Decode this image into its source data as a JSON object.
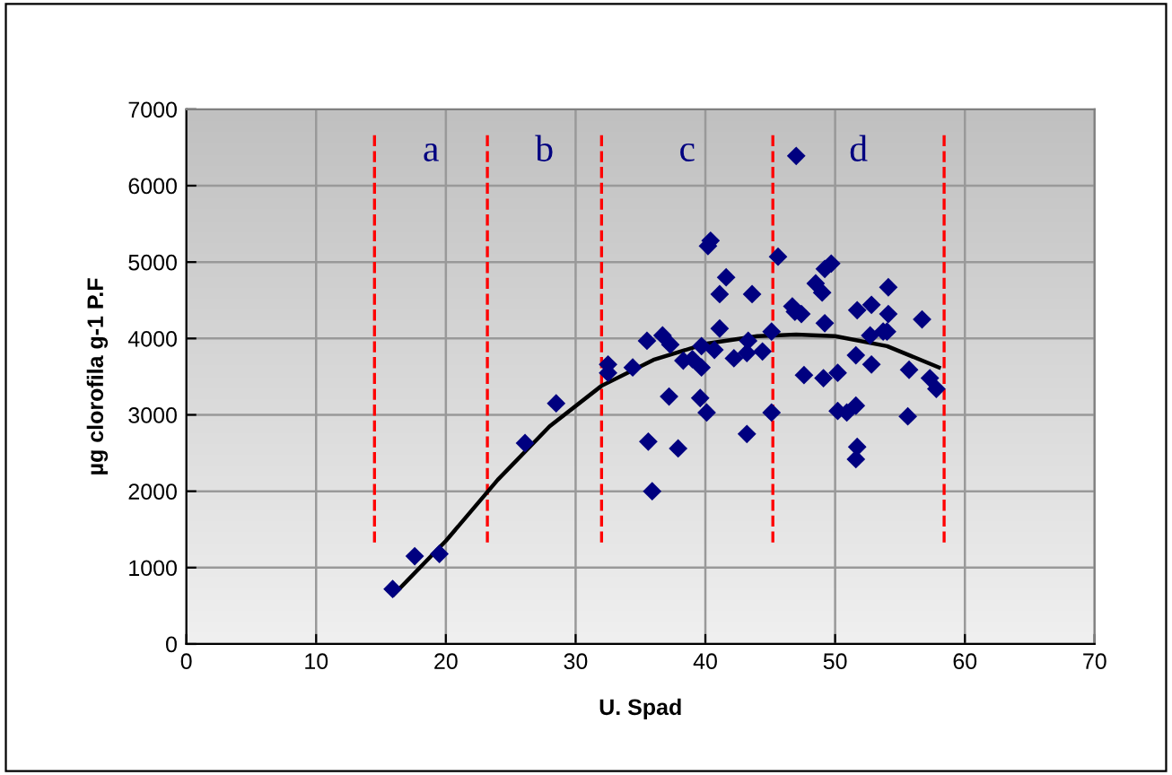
{
  "chart_data": {
    "type": "scatter",
    "xlabel": "U. Spad",
    "ylabel": "µg clorofila g-1 P.F",
    "xlim": [
      0,
      70
    ],
    "xticks": [
      0,
      10,
      20,
      30,
      40,
      50,
      60,
      70
    ],
    "ylim": [
      0,
      7000
    ],
    "yticks": [
      0,
      1000,
      2000,
      3000,
      4000,
      5000,
      6000,
      7000
    ],
    "grid": true,
    "marker": "diamond",
    "series": [
      {
        "color": "#000080",
        "x": [
          15.9,
          17.6,
          19.5,
          26.1,
          28.5,
          32.5,
          32.5,
          34.4,
          35.5,
          35.6,
          35.9,
          36.7,
          37.3,
          37.2,
          37.9,
          38.3,
          39.0,
          39.6,
          39.7,
          39.7,
          40.1,
          40.2,
          40.4,
          40.7,
          41.6,
          41.1,
          41.1,
          43.6,
          42.2,
          43.2,
          43.3,
          44.4,
          43.2,
          45.1,
          45.1,
          45.6,
          47.0,
          46.7,
          46.9,
          47.4,
          47.6,
          48.5,
          49.0,
          49.2,
          49.7,
          49.2,
          49.1,
          50.2,
          50.2,
          50.9,
          51.6,
          51.7,
          51.6,
          51.6,
          51.7,
          52.8,
          52.8,
          52.7,
          53.7,
          54.1,
          54.1,
          54.0,
          55.6,
          55.7,
          56.7,
          57.3,
          57.8
        ],
        "values": [
          720,
          1150,
          1180,
          2630,
          3150,
          3550,
          3660,
          3620,
          3970,
          2650,
          2000,
          4040,
          3920,
          3240,
          2560,
          3710,
          3730,
          3220,
          3900,
          3620,
          3030,
          5210,
          5280,
          3850,
          4800,
          4580,
          4130,
          4580,
          3740,
          3810,
          3970,
          3830,
          2750,
          3030,
          4090,
          5070,
          6390,
          4420,
          4350,
          4320,
          3520,
          4720,
          4600,
          4910,
          4980,
          4200,
          3480,
          3550,
          3050,
          3030,
          3120,
          2580,
          2420,
          3780,
          4370,
          4440,
          3660,
          4040,
          4090,
          4670,
          4320,
          4090,
          2980,
          3590,
          4250,
          3480,
          3340
        ]
      },
      {
        "type": "line",
        "color": "#000000",
        "marker": "none",
        "x": [
          16,
          20,
          24,
          28,
          32,
          36,
          40,
          44,
          47,
          50,
          54,
          58
        ],
        "values": [
          650,
          1350,
          2150,
          2850,
          3380,
          3720,
          3930,
          4030,
          4050,
          4030,
          3900,
          3620
        ]
      }
    ],
    "ref_lines": [
      {
        "axis": "x",
        "value": 14.5,
        "color": "#ff0000",
        "line_style": "dashed"
      },
      {
        "axis": "x",
        "value": 23.2,
        "color": "#ff0000",
        "line_style": "dashed"
      },
      {
        "axis": "x",
        "value": 32.0,
        "color": "#ff0000",
        "line_style": "dashed"
      },
      {
        "axis": "x",
        "value": 45.2,
        "color": "#ff0000",
        "line_style": "dashed"
      },
      {
        "axis": "x",
        "value": 58.4,
        "color": "#ff0000",
        "line_style": "dashed"
      }
    ],
    "annotations": [
      "a",
      "b",
      "c",
      "d"
    ]
  }
}
